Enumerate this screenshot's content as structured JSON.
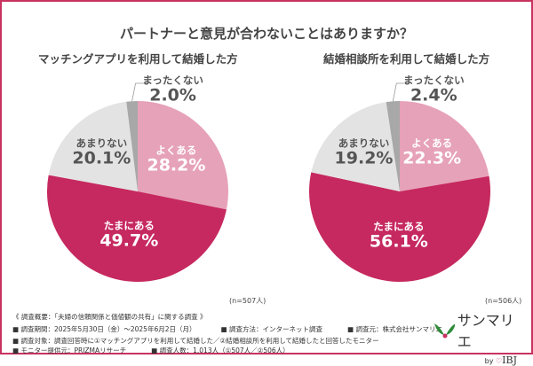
{
  "chart_data": [
    {
      "type": "pie",
      "title": "マッチングアプリを利用して結婚した方",
      "n": "(n=507人)",
      "slices": [
        {
          "label": "よくある",
          "value": 28.2,
          "display": "28.2%",
          "color": "#e6a2b8",
          "text_color": "#ffffff"
        },
        {
          "label": "たまにある",
          "value": 49.7,
          "display": "49.7%",
          "color": "#c6295f",
          "text_color": "#ffffff"
        },
        {
          "label": "あまりない",
          "value": 20.1,
          "display": "20.1%",
          "color": "#e3e3e3",
          "text_color": "#555555"
        },
        {
          "label": "まったくない",
          "value": 2.0,
          "display": "2.0%",
          "color": "#a8a8a8",
          "text_color": "#555555"
        }
      ]
    },
    {
      "type": "pie",
      "title": "結婚相談所を利用して結婚した方",
      "n": "(n=506人)",
      "slices": [
        {
          "label": "よくある",
          "value": 22.3,
          "display": "22.3%",
          "color": "#e6a2b8",
          "text_color": "#ffffff"
        },
        {
          "label": "たまにある",
          "value": 56.1,
          "display": "56.1%",
          "color": "#c6295f",
          "text_color": "#ffffff"
        },
        {
          "label": "あまりない",
          "value": 19.2,
          "display": "19.2%",
          "color": "#e3e3e3",
          "text_color": "#555555"
        },
        {
          "label": "まったくない",
          "value": 2.4,
          "display": "2.4%",
          "color": "#a8a8a8",
          "text_color": "#555555"
        }
      ]
    }
  ],
  "title": "パートナーと意見が合わないことはありますか？",
  "footer": {
    "overview": "《 調査概要：「夫婦の信頼関係と価値観の共有」に関する調査 》",
    "period": "■ 調査期間：2025年5月30日（金）〜2025年6月2日（月）",
    "method": "■ 調査方法：インターネット調査",
    "source": "■ 調査元：株式会社サンマリエ",
    "target": "■ 調査対象：調査回答時に①マッチングアプリを利用して結婚した／②結婚相談所を利用して結婚したと回答したモニター",
    "provider": "■ モニター提供元：PRIZMAリサーチ",
    "count": "■ 調査人数：1,013人（①507人／②506人）"
  },
  "logo": {
    "name": "サンマリエ",
    "by": "by",
    "brand": "IBJ",
    "accent": "#c8325f"
  }
}
